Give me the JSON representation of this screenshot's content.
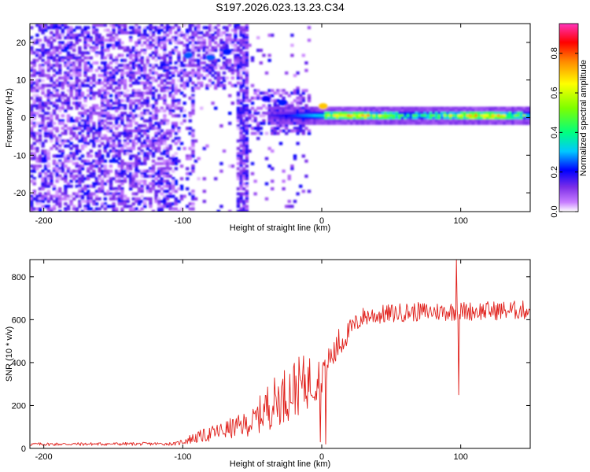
{
  "title": "S197.2026.023.13.23.C34",
  "chart_data": [
    {
      "type": "heatmap",
      "name": "spectrogram",
      "xlabel": "Height of straight line (km)",
      "ylabel": "Frequency (Hz)",
      "xlim": [
        -210,
        150
      ],
      "ylim": [
        -25,
        25
      ],
      "xticks": [
        -200,
        -100,
        0,
        100
      ],
      "xtick_labels": [
        "-200",
        "-100",
        "0",
        "100"
      ],
      "yticks": [
        -20,
        -10,
        0,
        10,
        20
      ],
      "ytick_labels": [
        "-20",
        "-10",
        "0",
        "10",
        "20"
      ],
      "colorbar": {
        "label": "Normalized spectral amplitude",
        "range": [
          0,
          0.95
        ],
        "ticks": [
          0,
          0.2,
          0.4,
          0.6,
          0.8
        ],
        "tick_labels": [
          "0.0",
          "0.2",
          "0.4",
          "0.6",
          "0.8"
        ]
      },
      "signal_band": {
        "x_start": -40,
        "x_end": 150,
        "freq_center": 0.8,
        "amplitude_range": [
          0.3,
          0.9
        ]
      },
      "noise_region": {
        "x_start": -210,
        "x_end": -55,
        "amplitude_range": [
          0.0,
          0.3
        ]
      },
      "hotspots": [
        {
          "x": -96,
          "y": 16.5,
          "amplitude": 0.25
        },
        {
          "x": -80,
          "y": 16,
          "amplitude": 0.25
        },
        {
          "x": -68,
          "y": 17.5,
          "amplitude": 0.22
        },
        {
          "x": -40,
          "y": 5,
          "amplitude": 0.2
        },
        {
          "x": -28,
          "y": 4,
          "amplitude": 0.22
        },
        {
          "x": 1,
          "y": 3,
          "amplitude": 0.7
        }
      ]
    },
    {
      "type": "line",
      "name": "snr",
      "xlabel": "Height of straight line (km)",
      "ylabel": "SNR (10 * v/v)",
      "xlim": [
        -210,
        150
      ],
      "ylim": [
        0,
        880
      ],
      "xticks": [
        -200,
        -100,
        0,
        100
      ],
      "xtick_labels": [
        "-200",
        "-100",
        "0",
        "100"
      ],
      "yticks": [
        0,
        200,
        400,
        600,
        800
      ],
      "ytick_labels": [
        "0",
        "200",
        "400",
        "600",
        "800"
      ],
      "color": "#e0201b",
      "envelope": [
        {
          "x": -210,
          "base": 12,
          "amp": 15
        },
        {
          "x": -105,
          "base": 14,
          "amp": 15
        },
        {
          "x": -95,
          "base": 20,
          "amp": 45
        },
        {
          "x": -70,
          "base": 40,
          "amp": 90
        },
        {
          "x": -50,
          "base": 60,
          "amp": 120
        },
        {
          "x": -40,
          "base": 80,
          "amp": 220
        },
        {
          "x": -20,
          "base": 140,
          "amp": 280
        },
        {
          "x": -5,
          "base": 200,
          "amp": 250
        },
        {
          "x": 10,
          "base": 380,
          "amp": 140
        },
        {
          "x": 20,
          "base": 500,
          "amp": 100
        },
        {
          "x": 30,
          "base": 570,
          "amp": 90
        },
        {
          "x": 60,
          "base": 590,
          "amp": 90
        },
        {
          "x": 150,
          "base": 600,
          "amp": 90
        }
      ],
      "events": [
        {
          "x": 97,
          "value": 880
        },
        {
          "x": 98.5,
          "value": 250
        },
        {
          "x": 12,
          "value": 555
        },
        {
          "x": 3,
          "value": 20
        },
        {
          "x": -1,
          "value": 30
        }
      ]
    }
  ]
}
